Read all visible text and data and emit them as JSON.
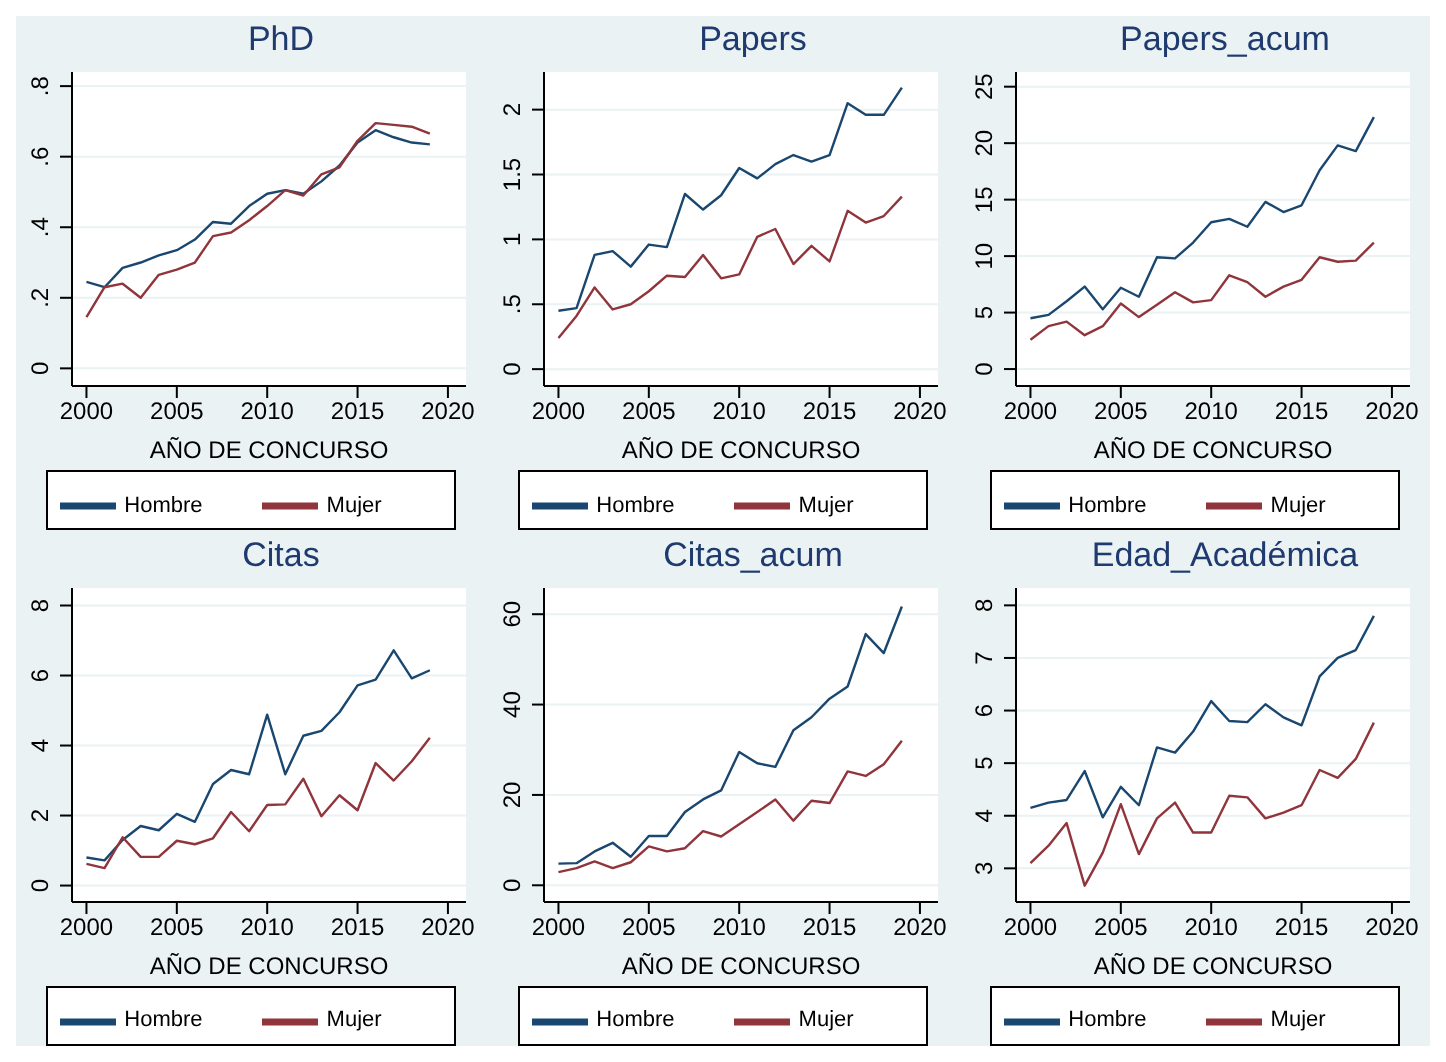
{
  "chart_data": [
    {
      "type": "line",
      "title": "PhD",
      "xlabel": "AÑO DE CONCURSO",
      "x": [
        2000,
        2001,
        2002,
        2003,
        2004,
        2005,
        2006,
        2007,
        2008,
        2009,
        2010,
        2011,
        2012,
        2013,
        2014,
        2015,
        2016,
        2017,
        2018,
        2019
      ],
      "xlim": [
        1999.2,
        2021
      ],
      "xticks": [
        2000,
        2005,
        2010,
        2015,
        2020
      ],
      "ylim": [
        -0.05,
        0.84
      ],
      "yticks": [
        0,
        {
          "value": 0.2,
          "label": ".2"
        },
        {
          "value": 0.4,
          "label": ".4"
        },
        {
          "value": 0.6,
          "label": ".6"
        },
        {
          "value": 0.8,
          "label": ".8"
        }
      ],
      "grid": "y",
      "legend": "bottom",
      "marker": "none",
      "line_style": "solid",
      "series": [
        {
          "name": "Hombre",
          "color": "#1a476f",
          "values": [
            0.245,
            0.23,
            0.285,
            0.3,
            0.32,
            0.335,
            0.365,
            0.415,
            0.41,
            0.46,
            0.495,
            0.505,
            0.495,
            0.53,
            0.575,
            0.64,
            0.675,
            0.655,
            0.64,
            0.635
          ]
        },
        {
          "name": "Mujer",
          "color": "#90353b",
          "values": [
            0.145,
            0.23,
            0.24,
            0.2,
            0.265,
            0.28,
            0.3,
            0.375,
            0.385,
            0.42,
            0.46,
            0.505,
            0.49,
            0.55,
            0.57,
            0.645,
            0.695,
            0.69,
            0.685,
            0.665
          ]
        }
      ]
    },
    {
      "type": "line",
      "title": "Papers",
      "xlabel": "AÑO DE CONCURSO",
      "x": [
        2000,
        2001,
        2002,
        2003,
        2004,
        2005,
        2006,
        2007,
        2008,
        2009,
        2010,
        2011,
        2012,
        2013,
        2014,
        2015,
        2016,
        2017,
        2018,
        2019
      ],
      "xlim": [
        1999.2,
        2021
      ],
      "xticks": [
        2000,
        2005,
        2010,
        2015,
        2020
      ],
      "ylim": [
        -0.13,
        2.29
      ],
      "yticks": [
        0,
        {
          "value": 0.5,
          "label": ".5"
        },
        1,
        1.5,
        2
      ],
      "grid": "y",
      "legend": "bottom",
      "marker": "none",
      "line_style": "solid",
      "series": [
        {
          "name": "Hombre",
          "color": "#1a476f",
          "values": [
            0.45,
            0.47,
            0.88,
            0.91,
            0.79,
            0.96,
            0.94,
            1.35,
            1.23,
            1.34,
            1.55,
            1.47,
            1.58,
            1.65,
            1.6,
            1.65,
            2.05,
            1.96,
            1.96,
            2.17
          ]
        },
        {
          "name": "Mujer",
          "color": "#90353b",
          "values": [
            0.24,
            0.41,
            0.63,
            0.46,
            0.5,
            0.6,
            0.72,
            0.71,
            0.88,
            0.7,
            0.73,
            1.02,
            1.08,
            0.81,
            0.95,
            0.83,
            1.22,
            1.13,
            1.18,
            1.33
          ]
        }
      ]
    },
    {
      "type": "line",
      "title": "Papers_acum",
      "xlabel": "AÑO DE CONCURSO",
      "x": [
        2000,
        2001,
        2002,
        2003,
        2004,
        2005,
        2006,
        2007,
        2008,
        2009,
        2010,
        2011,
        2012,
        2013,
        2014,
        2015,
        2016,
        2017,
        2018,
        2019
      ],
      "xlim": [
        1999.2,
        2021
      ],
      "xticks": [
        2000,
        2005,
        2010,
        2015,
        2020
      ],
      "ylim": [
        -1.5,
        26.3
      ],
      "yticks": [
        0,
        5,
        10,
        15,
        20,
        25
      ],
      "grid": "y",
      "legend": "bottom",
      "marker": "none",
      "line_style": "solid",
      "series": [
        {
          "name": "Hombre",
          "color": "#1a476f",
          "values": [
            4.5,
            4.8,
            6,
            7.3,
            5.3,
            7.2,
            6.4,
            9.9,
            9.8,
            11.2,
            13,
            13.3,
            12.6,
            14.8,
            13.9,
            14.5,
            17.6,
            19.8,
            19.3,
            22.3
          ]
        },
        {
          "name": "Mujer",
          "color": "#90353b",
          "values": [
            2.6,
            3.8,
            4.2,
            3,
            3.8,
            5.8,
            4.6,
            5.7,
            6.8,
            5.9,
            6.1,
            8.3,
            7.7,
            6.4,
            7.3,
            7.9,
            9.9,
            9.5,
            9.6,
            11.2
          ]
        }
      ]
    },
    {
      "type": "line",
      "title": "Citas",
      "xlabel": "AÑO DE CONCURSO",
      "x": [
        2000,
        2001,
        2002,
        2003,
        2004,
        2005,
        2006,
        2007,
        2008,
        2009,
        2010,
        2011,
        2012,
        2013,
        2014,
        2015,
        2016,
        2017,
        2018,
        2019
      ],
      "xlim": [
        1999.2,
        2021
      ],
      "xticks": [
        2000,
        2005,
        2010,
        2015,
        2020
      ],
      "ylim": [
        -0.47,
        8.5
      ],
      "yticks": [
        0,
        2,
        4,
        6,
        8
      ],
      "grid": "y",
      "legend": "bottom",
      "marker": "none",
      "line_style": "solid",
      "series": [
        {
          "name": "Hombre",
          "color": "#1a476f",
          "values": [
            0.8,
            0.72,
            1.3,
            1.7,
            1.58,
            2.05,
            1.82,
            2.9,
            3.3,
            3.18,
            4.88,
            3.18,
            4.28,
            4.42,
            4.95,
            5.72,
            5.88,
            6.72,
            5.92,
            6.15
          ]
        },
        {
          "name": "Mujer",
          "color": "#90353b",
          "values": [
            0.62,
            0.5,
            1.38,
            0.82,
            0.82,
            1.28,
            1.18,
            1.35,
            2.1,
            1.55,
            2.3,
            2.32,
            3.05,
            1.98,
            2.58,
            2.15,
            3.5,
            3,
            3.55,
            4.22
          ]
        }
      ]
    },
    {
      "type": "line",
      "title": "Citas_acum",
      "xlabel": "AÑO DE CONCURSO",
      "x": [
        2000,
        2001,
        2002,
        2003,
        2004,
        2005,
        2006,
        2007,
        2008,
        2009,
        2010,
        2011,
        2012,
        2013,
        2014,
        2015,
        2016,
        2017,
        2018,
        2019
      ],
      "xlim": [
        1999.2,
        2021
      ],
      "xticks": [
        2000,
        2005,
        2010,
        2015,
        2020
      ],
      "ylim": [
        -3.7,
        65.8
      ],
      "yticks": [
        0,
        20,
        40,
        60
      ],
      "grid": "y",
      "legend": "bottom",
      "marker": "none",
      "line_style": "solid",
      "series": [
        {
          "name": "Hombre",
          "color": "#1a476f",
          "values": [
            4.8,
            4.9,
            7.5,
            9.4,
            6.3,
            10.9,
            10.9,
            16.2,
            19,
            21,
            29.5,
            27,
            26.2,
            34.3,
            37.2,
            41.3,
            44,
            55.6,
            51.4,
            61.7
          ]
        },
        {
          "name": "Mujer",
          "color": "#90353b",
          "values": [
            2.9,
            3.8,
            5.3,
            3.8,
            5.1,
            8.6,
            7.5,
            8.2,
            12,
            10.8,
            13.5,
            16.2,
            19,
            14.3,
            18.7,
            18.2,
            25.2,
            24.2,
            26.8,
            32
          ]
        }
      ]
    },
    {
      "type": "line",
      "title": "Edad_Académica",
      "xlabel": "AÑO DE CONCURSO",
      "x": [
        2000,
        2001,
        2002,
        2003,
        2004,
        2005,
        2006,
        2007,
        2008,
        2009,
        2010,
        2011,
        2012,
        2013,
        2014,
        2015,
        2016,
        2017,
        2018,
        2019
      ],
      "xlim": [
        1999.2,
        2021
      ],
      "xticks": [
        2000,
        2005,
        2010,
        2015,
        2020
      ],
      "ylim": [
        2.36,
        8.33
      ],
      "yticks": [
        3,
        4,
        5,
        6,
        7,
        8
      ],
      "grid": "y",
      "legend": "bottom",
      "marker": "none",
      "line_style": "solid",
      "series": [
        {
          "name": "Hombre",
          "color": "#1a476f",
          "values": [
            4.15,
            4.25,
            4.3,
            4.85,
            3.97,
            4.55,
            4.2,
            5.3,
            5.2,
            5.6,
            6.18,
            5.8,
            5.78,
            6.12,
            5.87,
            5.72,
            6.65,
            7,
            7.15,
            7.8
          ]
        },
        {
          "name": "Mujer",
          "color": "#90353b",
          "values": [
            3.1,
            3.43,
            3.86,
            2.67,
            3.3,
            4.22,
            3.27,
            3.95,
            4.25,
            3.68,
            3.68,
            4.38,
            4.35,
            3.95,
            4.06,
            4.2,
            4.87,
            4.72,
            5.08,
            5.77
          ]
        }
      ]
    }
  ]
}
